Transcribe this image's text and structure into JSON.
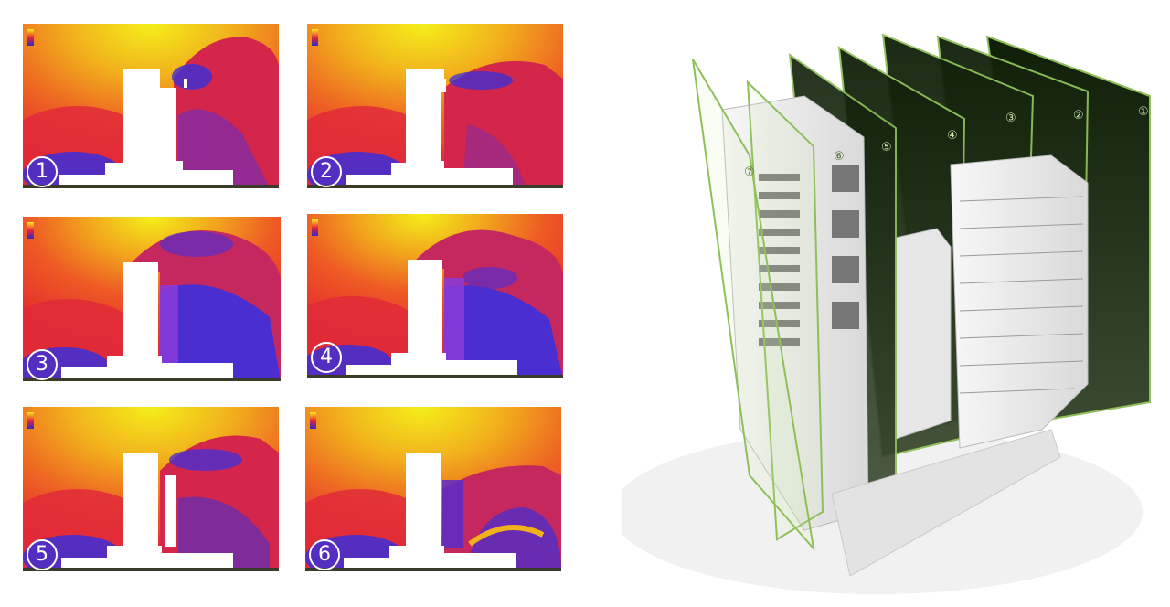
{
  "panels": [
    {
      "number": "①",
      "id": "1"
    },
    {
      "number": "②",
      "id": "2"
    },
    {
      "number": "③",
      "id": "3"
    },
    {
      "number": "④",
      "id": "4"
    },
    {
      "number": "⑤",
      "id": "5"
    },
    {
      "number": "⑥",
      "id": "6"
    }
  ],
  "section_planes": {
    "labels": [
      "①",
      "②",
      "③",
      "④",
      "⑤",
      "⑥",
      "⑦"
    ]
  },
  "colors": {
    "yellow": "#f2e81a",
    "orange": "#f08a1e",
    "red": "#e5243a",
    "magenta": "#c4285e",
    "blue": "#3b2fd8",
    "plane_green": "#1f3a12",
    "plane_edge": "#8fbf5a"
  }
}
